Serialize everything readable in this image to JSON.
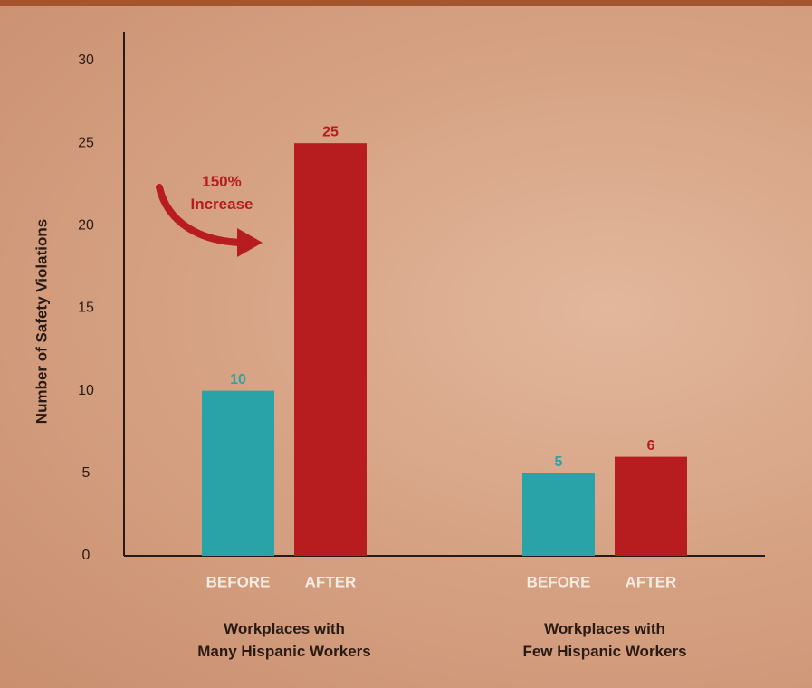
{
  "chart_data": {
    "type": "grouped_bar",
    "y_label": "Number of Safety Violations",
    "categories": [
      "Workplaces with\nMany Hispanic Workers",
      "Workplaces with\nFew Hispanic Workers"
    ],
    "series": [
      {
        "name": "BEFORE",
        "color": "#2aa3a8",
        "values": [
          10,
          5
        ]
      },
      {
        "name": "AFTER",
        "color": "#b71c1f",
        "values": [
          25,
          6
        ]
      }
    ],
    "annotation": "150%\nIncrease",
    "ylim": [
      0,
      30
    ],
    "yticks": [
      0,
      5,
      10,
      15,
      20,
      25,
      30
    ]
  }
}
